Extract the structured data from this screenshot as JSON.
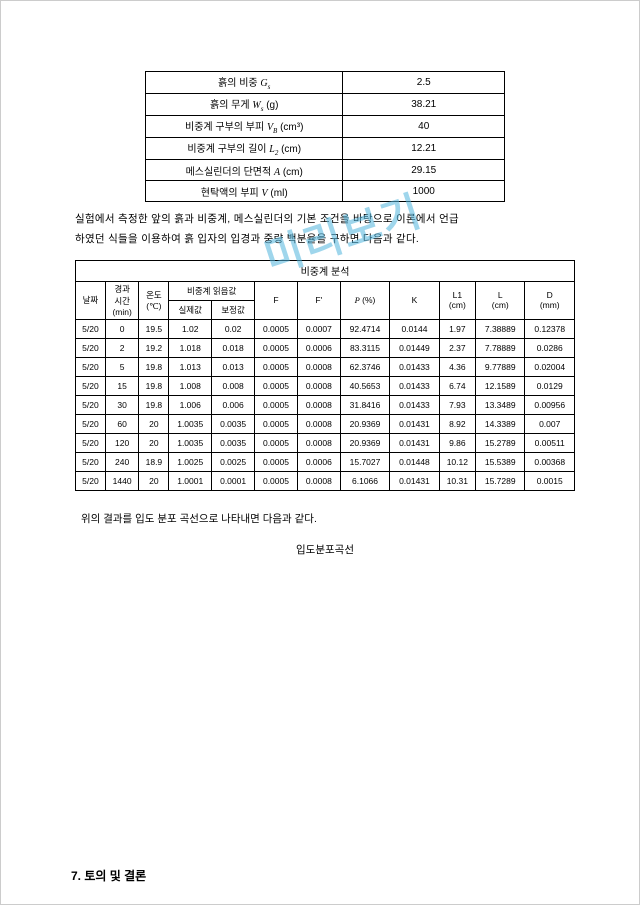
{
  "watermark": "미리보기",
  "params": {
    "rows": [
      {
        "label_prefix": "흙의 비중 ",
        "symbol": "G",
        "sub": "s",
        "unit": "",
        "value": "2.5"
      },
      {
        "label_prefix": "흙의 무게 ",
        "symbol": "W",
        "sub": "s",
        "unit": " (g)",
        "value": "38.21"
      },
      {
        "label_prefix": "비중계 구부의 부피 ",
        "symbol": "V",
        "sub": "B",
        "unit": " (cm³)",
        "value": "40"
      },
      {
        "label_prefix": "비중계 구부의 길이 ",
        "symbol": "L",
        "sub": "2",
        "unit": "  (cm)",
        "value": "12.21"
      },
      {
        "label_prefix": "메스실린더의 단면적 ",
        "symbol": "A",
        "sub": "",
        "unit": " (cm)",
        "value": "29.15"
      },
      {
        "label_prefix": "현탁액의 부피 ",
        "symbol": "V",
        "sub": "",
        "unit": " (ml)",
        "value": "1000"
      }
    ]
  },
  "paragraph1_a": "실험에서 측정한 앞의 흙과 비중계, 메스실린더의 기본 조건을 바탕으로 이론에서 언급",
  "paragraph1_b": "하였던 식들을 이용하여 흙 입자의 입경과 중량 백분율을 구하면 다음과 같다.",
  "data_table": {
    "title": "비중계 분석",
    "headers": {
      "date": "날짜",
      "time": "경과\n시간\n(min)",
      "temp": "온도\n(℃)",
      "reading_group": "비중계 읽음값",
      "reading_actual": "실제값",
      "reading_corr": "보정값",
      "F": "F",
      "F2": "F'",
      "P": "P (%)",
      "K": "K",
      "L1": "L1\n(cm)",
      "L": "L\n(cm)",
      "D": "D\n(mm)"
    },
    "rows": [
      [
        "5/20",
        "0",
        "19.5",
        "1.02",
        "0.02",
        "0.0005",
        "0.0007",
        "92.4714",
        "0.0144",
        "1.97",
        "7.38889",
        "0.12378"
      ],
      [
        "5/20",
        "2",
        "19.2",
        "1.018",
        "0.018",
        "0.0005",
        "0.0006",
        "83.3115",
        "0.01449",
        "2.37",
        "7.78889",
        "0.0286"
      ],
      [
        "5/20",
        "5",
        "19.8",
        "1.013",
        "0.013",
        "0.0005",
        "0.0008",
        "62.3746",
        "0.01433",
        "4.36",
        "9.77889",
        "0.02004"
      ],
      [
        "5/20",
        "15",
        "19.8",
        "1.008",
        "0.008",
        "0.0005",
        "0.0008",
        "40.5653",
        "0.01433",
        "6.74",
        "12.1589",
        "0.0129"
      ],
      [
        "5/20",
        "30",
        "19.8",
        "1.006",
        "0.006",
        "0.0005",
        "0.0008",
        "31.8416",
        "0.01433",
        "7.93",
        "13.3489",
        "0.00956"
      ],
      [
        "5/20",
        "60",
        "20",
        "1.0035",
        "0.0035",
        "0.0005",
        "0.0008",
        "20.9369",
        "0.01431",
        "8.92",
        "14.3389",
        "0.007"
      ],
      [
        "5/20",
        "120",
        "20",
        "1.0035",
        "0.0035",
        "0.0005",
        "0.0008",
        "20.9369",
        "0.01431",
        "9.86",
        "15.2789",
        "0.00511"
      ],
      [
        "5/20",
        "240",
        "18.9",
        "1.0025",
        "0.0025",
        "0.0005",
        "0.0006",
        "15.7027",
        "0.01448",
        "10.12",
        "15.5389",
        "0.00368"
      ],
      [
        "5/20",
        "1440",
        "20",
        "1.0001",
        "0.0001",
        "0.0005",
        "0.0008",
        "6.1066",
        "0.01431",
        "10.31",
        "15.7289",
        "0.0015"
      ]
    ]
  },
  "mid_text": "위의 결과를 입도 분포 곡선으로 나타내면 다음과 같다.",
  "curve_title": "입도분포곡선",
  "section7": "7. 토의 및 결론"
}
